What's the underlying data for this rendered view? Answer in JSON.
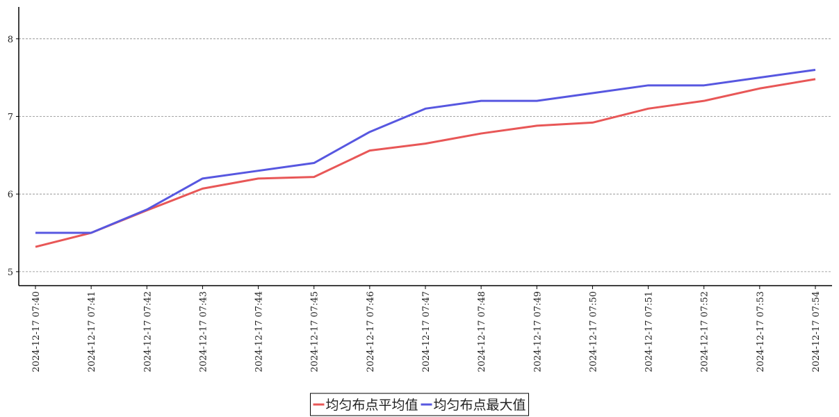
{
  "chart_data": {
    "type": "line",
    "categories": [
      "2024-12-17 07:40",
      "2024-12-17 07:41",
      "2024-12-17 07:42",
      "2024-12-17 07:43",
      "2024-12-17 07:44",
      "2024-12-17 07:45",
      "2024-12-17 07:46",
      "2024-12-17 07:47",
      "2024-12-17 07:48",
      "2024-12-17 07:49",
      "2024-12-17 07:50",
      "2024-12-17 07:51",
      "2024-12-17 07:52",
      "2024-12-17 07:53",
      "2024-12-17 07:54"
    ],
    "series": [
      {
        "name": "均匀布点平均值",
        "color": "#e85757",
        "values": [
          5.32,
          5.5,
          5.79,
          6.07,
          6.2,
          6.22,
          6.56,
          6.65,
          6.78,
          6.88,
          6.92,
          7.1,
          7.2,
          7.36,
          7.48
        ]
      },
      {
        "name": "均匀布点最大值",
        "color": "#5757e0",
        "values": [
          5.5,
          5.5,
          5.8,
          6.2,
          6.3,
          6.4,
          6.8,
          7.1,
          7.2,
          7.2,
          7.3,
          7.4,
          7.4,
          7.5,
          7.6
        ]
      }
    ],
    "ylim": [
      4.82,
      8.41
    ],
    "yticks": [
      5,
      6,
      7,
      8
    ],
    "grid": true,
    "legend": "bottom"
  }
}
